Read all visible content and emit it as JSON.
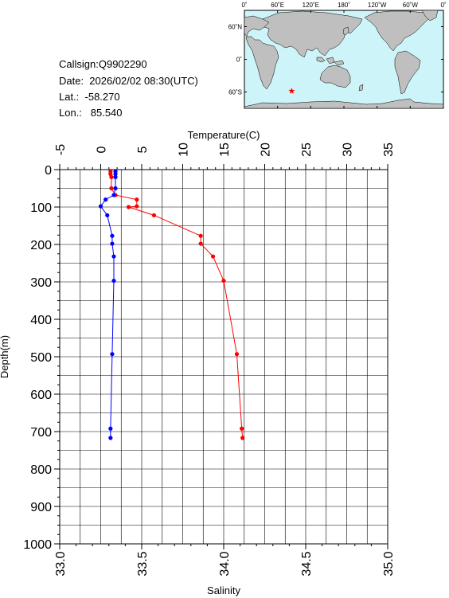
{
  "info": {
    "callsign": "Callsign:Q9902290",
    "date": "Date:  2026/02/02 08:30(UTC)",
    "lat": "Lat.:  -58.270",
    "lon": "Lon.:   85.540"
  },
  "map": {
    "lon_labels": [
      "0˚",
      "60˚E",
      "120˚E",
      "180˚",
      "120˚W",
      "60˚W",
      "0˚"
    ],
    "lat_labels": [
      "60˚N",
      "0˚",
      "60˚S"
    ],
    "station": {
      "lat": -58.27,
      "lon": 85.54,
      "marker": "red-star"
    },
    "colors": {
      "ocean": "#cdf5f9",
      "land": "#bfbfbf",
      "marker": "#ff0000"
    }
  },
  "chart_data": {
    "type": "line",
    "ylabel": "Depth(m)",
    "ylim": [
      1000,
      0
    ],
    "y_ticks": [
      "0",
      "100",
      "200",
      "300",
      "400",
      "500",
      "600",
      "700",
      "800",
      "900",
      "1000"
    ],
    "grid": true,
    "top_axis": {
      "label": "Temperature(C)",
      "range": [
        -5,
        35
      ],
      "ticks": [
        "-5",
        "0",
        "5",
        "10",
        "15",
        "20",
        "25",
        "30",
        "35"
      ]
    },
    "bottom_axis": {
      "label": "Salinity",
      "range": [
        33.0,
        35.0
      ],
      "ticks": [
        "33.0",
        "33.5",
        "34.0",
        "34.5",
        "35.0"
      ]
    },
    "series": [
      {
        "axis": "top",
        "color": "#ff0000",
        "points": [
          {
            "x": 1.2,
            "y": 5
          },
          {
            "x": 1.2,
            "y": 12
          },
          {
            "x": 1.3,
            "y": 20
          },
          {
            "x": 1.3,
            "y": 50
          },
          {
            "x": 1.8,
            "y": 68
          },
          {
            "x": 4.4,
            "y": 80
          },
          {
            "x": 4.4,
            "y": 98
          },
          {
            "x": 3.4,
            "y": 100
          },
          {
            "x": 6.5,
            "y": 122
          },
          {
            "x": 12.2,
            "y": 177
          },
          {
            "x": 12.2,
            "y": 198
          },
          {
            "x": 13.7,
            "y": 232
          },
          {
            "x": 15.0,
            "y": 297
          },
          {
            "x": 16.6,
            "y": 493
          },
          {
            "x": 17.2,
            "y": 692
          },
          {
            "x": 17.3,
            "y": 717
          }
        ]
      },
      {
        "axis": "bottom",
        "color": "#0000ff",
        "points": [
          {
            "x": 33.34,
            "y": 5
          },
          {
            "x": 33.34,
            "y": 12
          },
          {
            "x": 33.34,
            "y": 20
          },
          {
            "x": 33.34,
            "y": 50
          },
          {
            "x": 33.33,
            "y": 68
          },
          {
            "x": 33.28,
            "y": 80
          },
          {
            "x": 33.25,
            "y": 98
          },
          {
            "x": 33.29,
            "y": 122
          },
          {
            "x": 33.32,
            "y": 177
          },
          {
            "x": 33.32,
            "y": 198
          },
          {
            "x": 33.33,
            "y": 232
          },
          {
            "x": 33.33,
            "y": 297
          },
          {
            "x": 33.32,
            "y": 493
          },
          {
            "x": 33.31,
            "y": 692
          },
          {
            "x": 33.31,
            "y": 717
          }
        ]
      }
    ]
  }
}
